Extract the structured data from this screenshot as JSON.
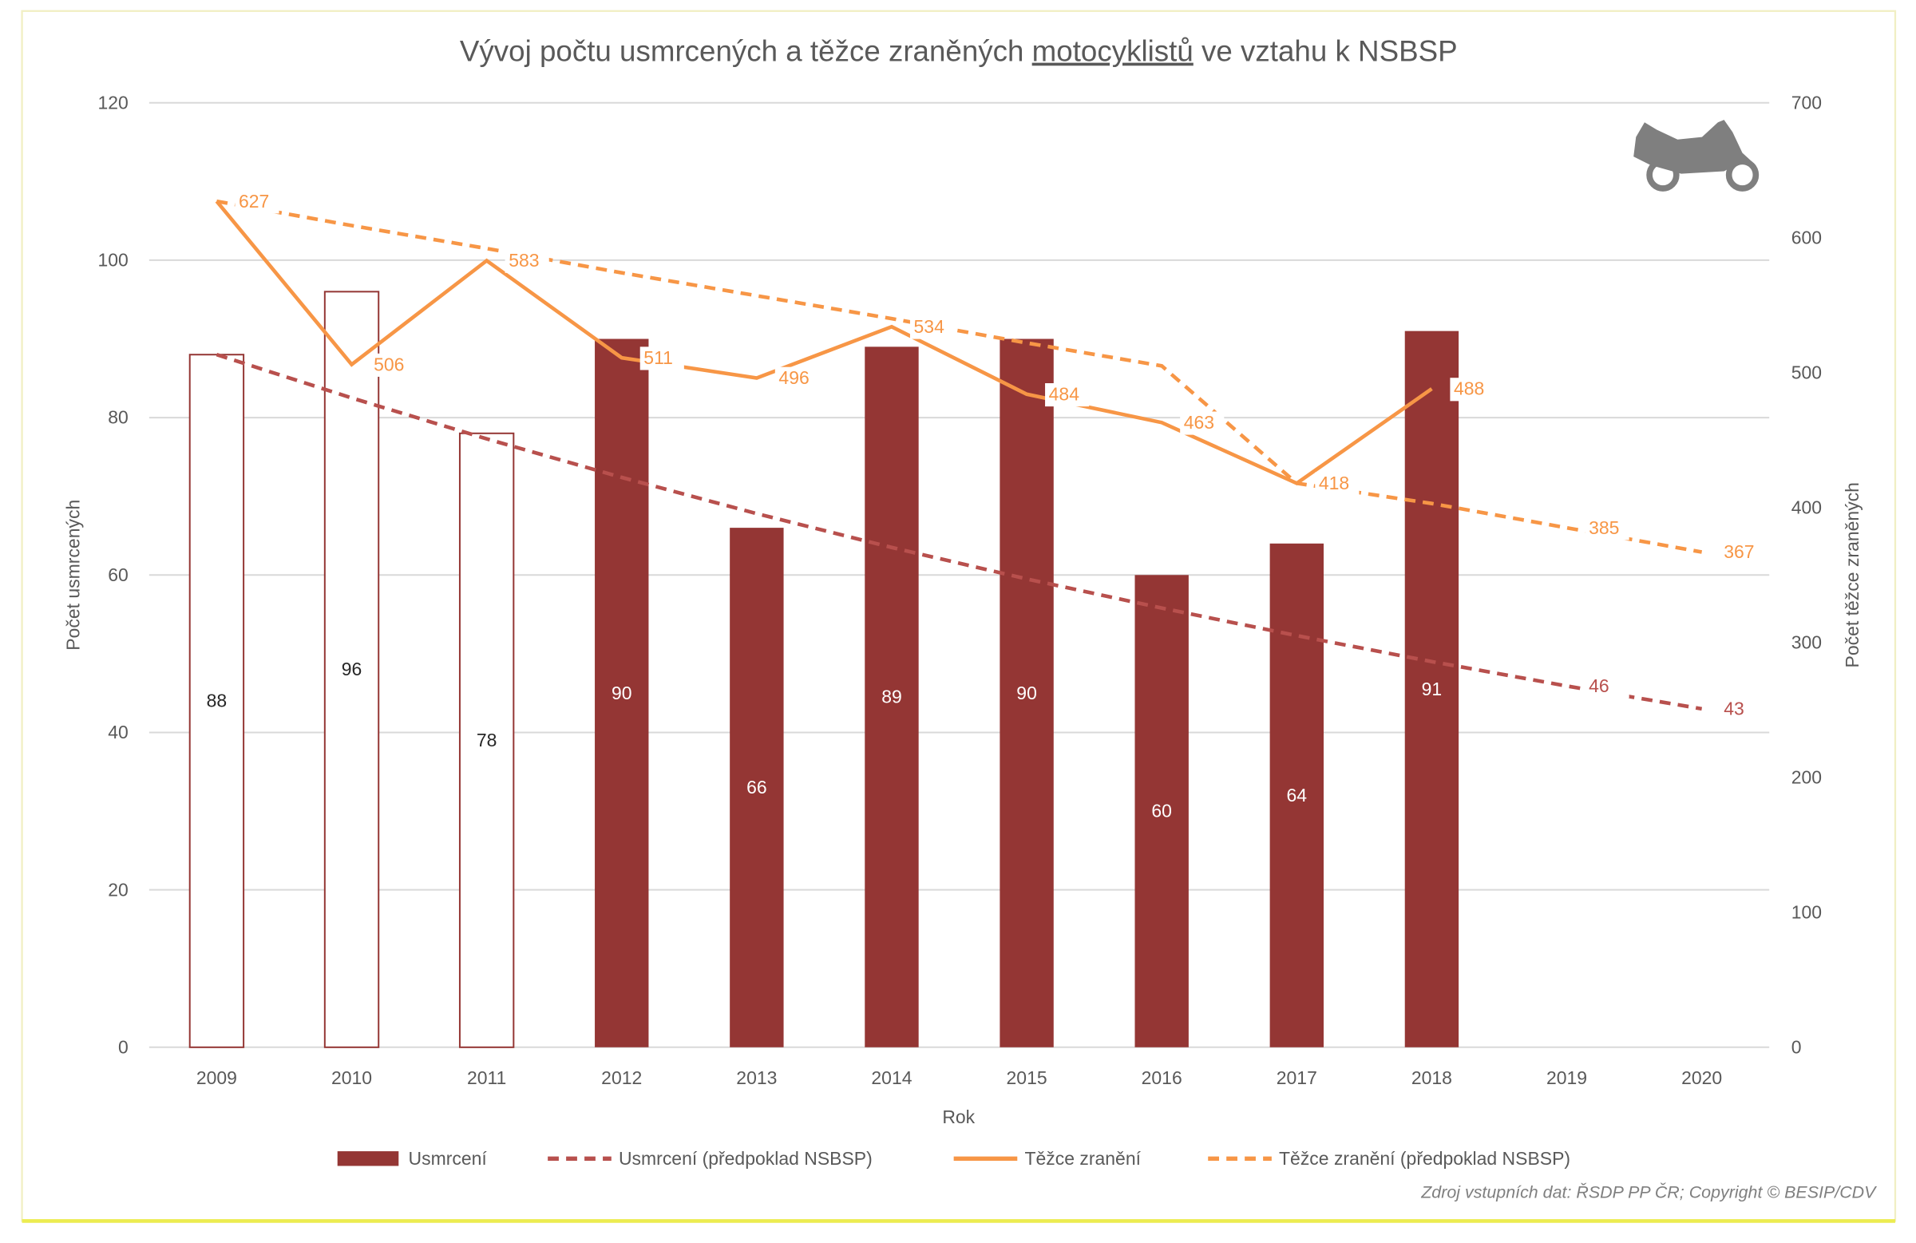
{
  "chart_data": {
    "type": "bar",
    "title_parts": [
      "Vývoj počtu usmrcených a těžce zraněných ",
      "motocyklistů",
      " ve vztahu k NSBSP"
    ],
    "xlabel": "Rok",
    "ylabel": "Počet usmrcených",
    "y2label": "Počet těžce zraněných",
    "categories": [
      "2009",
      "2010",
      "2011",
      "2012",
      "2013",
      "2014",
      "2015",
      "2016",
      "2017",
      "2018",
      "2019",
      "2020"
    ],
    "ylim": [
      0,
      120
    ],
    "y_ticks": [
      "0",
      "20",
      "40",
      "60",
      "80",
      "100",
      "120"
    ],
    "y2lim": [
      0,
      700
    ],
    "y2_ticks": [
      "0",
      "100",
      "200",
      "300",
      "400",
      "500",
      "600",
      "700"
    ],
    "grid": true,
    "legend_position": "bottom",
    "series": [
      {
        "name": "Usmrcení",
        "type": "bar",
        "axis": "left",
        "color": "#943634",
        "values": [
          88,
          96,
          78,
          90,
          66,
          89,
          90,
          60,
          64,
          91,
          null,
          null
        ],
        "outlined_only": [
          true,
          true,
          true,
          false,
          false,
          false,
          false,
          false,
          false,
          false,
          false,
          false
        ],
        "labels": [
          "88",
          "96",
          "78",
          "90",
          "66",
          "89",
          "90",
          "60",
          "64",
          "91",
          "",
          ""
        ]
      },
      {
        "name": "Usmrcení (předpoklad NSBSP)",
        "type": "line",
        "dash": true,
        "axis": "left",
        "color": "#B8504D",
        "values": [
          88,
          82.5,
          77.3,
          72.4,
          67.8,
          63.5,
          59.5,
          55.8,
          52.3,
          49.0,
          45.9,
          43
        ],
        "labels": [
          "",
          "",
          "",
          "",
          "",
          "",
          "",
          "",
          "",
          "",
          "46",
          "43"
        ]
      },
      {
        "name": "Těžce zranění",
        "type": "line",
        "dash": false,
        "axis": "right",
        "color": "#F79646",
        "values": [
          627,
          506,
          583,
          511,
          496,
          534,
          484,
          463,
          418,
          488,
          null,
          null
        ],
        "labels": [
          "627",
          "506",
          "583",
          "511",
          "496",
          "534",
          "484",
          "463",
          "418",
          "488",
          "",
          ""
        ]
      },
      {
        "name": "Těžce zranění (předpoklad NSBSP)",
        "type": "line",
        "dash": true,
        "axis": "right",
        "color": "#F79646",
        "values": [
          627,
          609,
          592,
          574,
          557,
          540,
          522,
          505,
          418,
          403,
          385,
          367
        ],
        "labels": [
          "",
          "",
          "",
          "",
          "",
          "",
          "",
          "",
          "",
          "",
          "385",
          "367"
        ]
      }
    ],
    "source": "Zdroj vstupních dat: ŘSDP PP ČR; Copyright © BESIP/CDV"
  },
  "icon": "motorcycle-icon"
}
